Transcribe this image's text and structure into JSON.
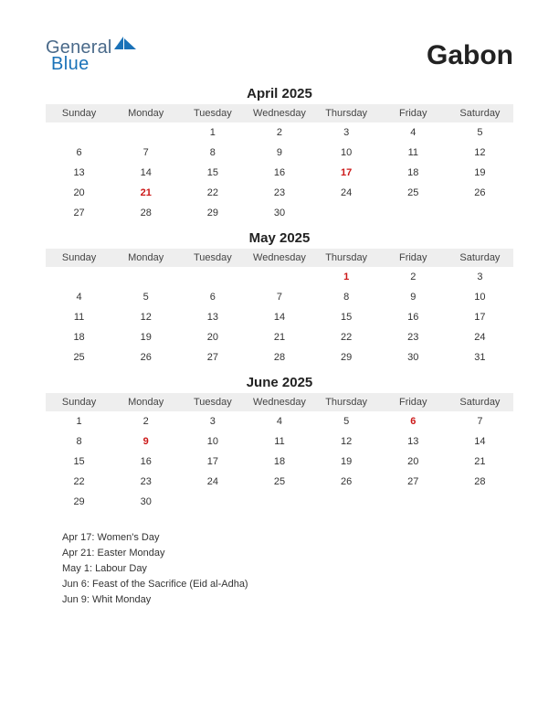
{
  "logo": {
    "general": "General",
    "blue": "Blue",
    "mark_color": "#1a72b8",
    "general_color": "#4a6a8a"
  },
  "title": "Gabon",
  "colors": {
    "header_bg": "#eeeeee",
    "text": "#333333",
    "holiday": "#cc1818",
    "background": "#ffffff"
  },
  "typography": {
    "title_fontsize": 30,
    "month_title_fontsize": 15,
    "weekday_fontsize": 11,
    "day_fontsize": 11,
    "holiday_list_fontsize": 11
  },
  "weekdays": [
    "Sunday",
    "Monday",
    "Tuesday",
    "Wednesday",
    "Thursday",
    "Friday",
    "Saturday"
  ],
  "months": [
    {
      "title": "April 2025",
      "weeks": [
        [
          "",
          "",
          "1",
          "2",
          "3",
          "4",
          "5"
        ],
        [
          "6",
          "7",
          "8",
          "9",
          "10",
          "11",
          "12"
        ],
        [
          "13",
          "14",
          "15",
          "16",
          "17",
          "18",
          "19"
        ],
        [
          "20",
          "21",
          "22",
          "23",
          "24",
          "25",
          "26"
        ],
        [
          "27",
          "28",
          "29",
          "30",
          "",
          "",
          ""
        ]
      ],
      "holidays": [
        "17",
        "21"
      ]
    },
    {
      "title": "May 2025",
      "weeks": [
        [
          "",
          "",
          "",
          "",
          "1",
          "2",
          "3"
        ],
        [
          "4",
          "5",
          "6",
          "7",
          "8",
          "9",
          "10"
        ],
        [
          "11",
          "12",
          "13",
          "14",
          "15",
          "16",
          "17"
        ],
        [
          "18",
          "19",
          "20",
          "21",
          "22",
          "23",
          "24"
        ],
        [
          "25",
          "26",
          "27",
          "28",
          "29",
          "30",
          "31"
        ]
      ],
      "holidays": [
        "1"
      ]
    },
    {
      "title": "June 2025",
      "weeks": [
        [
          "1",
          "2",
          "3",
          "4",
          "5",
          "6",
          "7"
        ],
        [
          "8",
          "9",
          "10",
          "11",
          "12",
          "13",
          "14"
        ],
        [
          "15",
          "16",
          "17",
          "18",
          "19",
          "20",
          "21"
        ],
        [
          "22",
          "23",
          "24",
          "25",
          "26",
          "27",
          "28"
        ],
        [
          "29",
          "30",
          "",
          "",
          "",
          "",
          ""
        ]
      ],
      "holidays": [
        "6",
        "9"
      ]
    }
  ],
  "holiday_list": [
    "Apr 17: Women's Day",
    "Apr 21: Easter Monday",
    "May 1: Labour Day",
    "Jun 6: Feast of the Sacrifice (Eid al-Adha)",
    "Jun 9: Whit Monday"
  ]
}
